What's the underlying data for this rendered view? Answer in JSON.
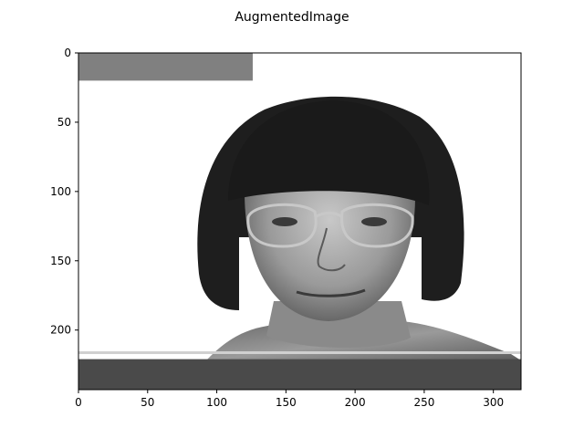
{
  "figure": {
    "title": "AugmentedImage"
  },
  "axes": {
    "x_ticks": [
      "0",
      "50",
      "100",
      "150",
      "200",
      "250",
      "300"
    ],
    "y_ticks": [
      "0",
      "50",
      "100",
      "150",
      "200"
    ],
    "x_range": [
      0,
      320
    ],
    "y_range": [
      0,
      243
    ]
  },
  "image": {
    "subject": "grayscale portrait of a woman with a dark bob haircut and glasses",
    "occlusion_patches": [
      {
        "name": "top-left-gray-block",
        "x_from": 0,
        "x_to": 126,
        "y_from": 0,
        "y_to": 20,
        "color": "#808080"
      },
      {
        "name": "bottom-dark-band",
        "x_from": 0,
        "x_to": 320,
        "y_from": 221,
        "y_to": 243,
        "color": "#4a4a4a"
      }
    ],
    "colors": {
      "hair": "#1e1e1e",
      "skin": "#9a9a9a",
      "background": "#ffffff"
    }
  }
}
